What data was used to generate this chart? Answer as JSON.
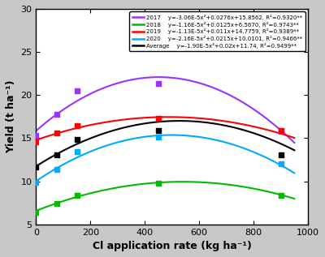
{
  "series": [
    {
      "label": "2017",
      "color": "#9933FF",
      "a": -3.06e-05,
      "b": 0.0276,
      "c": 15.8562,
      "eq": "y=-3.06E-5x²+0.0276x+15.8562, R²=0.9320**",
      "x_data": [
        0,
        75,
        150,
        450,
        900
      ],
      "y_data": [
        15.3,
        17.8,
        20.5,
        21.3,
        15.8
      ]
    },
    {
      "label": "2018",
      "color": "#00BB00",
      "a": -1.16e-05,
      "b": 0.0125,
      "c": 6.567,
      "eq": "y=-1.16E-5x²+0.0125x+6.5670, R²=0.9743**",
      "x_data": [
        0,
        75,
        150,
        450,
        900
      ],
      "y_data": [
        6.4,
        7.4,
        8.4,
        9.8,
        8.4
      ]
    },
    {
      "label": "2019",
      "color": "#FF0000",
      "a": -1.13e-05,
      "b": 0.011,
      "c": 14.7759,
      "eq": "y=-1.13E-5x²+0.011x+14.7759, R²=0.9389**",
      "x_data": [
        0,
        75,
        150,
        450,
        900
      ],
      "y_data": [
        14.6,
        15.6,
        16.4,
        17.3,
        15.9
      ]
    },
    {
      "label": "2020",
      "color": "#00AAFF",
      "a": -2.16e-05,
      "b": 0.0215,
      "c": 10.0101,
      "eq": "y=-2.16E-5x²+0.0215x+10.0101, R²=0.9466**",
      "x_data": [
        0,
        75,
        150,
        450,
        900
      ],
      "y_data": [
        9.9,
        11.4,
        13.4,
        15.1,
        12.0
      ]
    },
    {
      "label": "Average",
      "color": "#000000",
      "a": -1.9e-05,
      "b": 0.02,
      "c": 11.74,
      "eq": "y=-1.90E-5x²+0.02x+11.74, R²=0.9499**",
      "x_data": [
        0,
        75,
        150,
        450,
        900
      ],
      "y_data": [
        11.6,
        13.1,
        14.8,
        15.9,
        13.1
      ]
    }
  ],
  "xlim": [
    0,
    1000
  ],
  "ylim": [
    5,
    30
  ],
  "xticks": [
    0,
    200,
    400,
    600,
    800,
    1000
  ],
  "yticks": [
    5,
    10,
    15,
    20,
    25,
    30
  ],
  "xlabel": "Cl application rate (kg ha⁻¹)",
  "ylabel": "Yield (t ha⁻¹)",
  "background_color": "#c8c8c8",
  "plot_background": "#ffffff"
}
